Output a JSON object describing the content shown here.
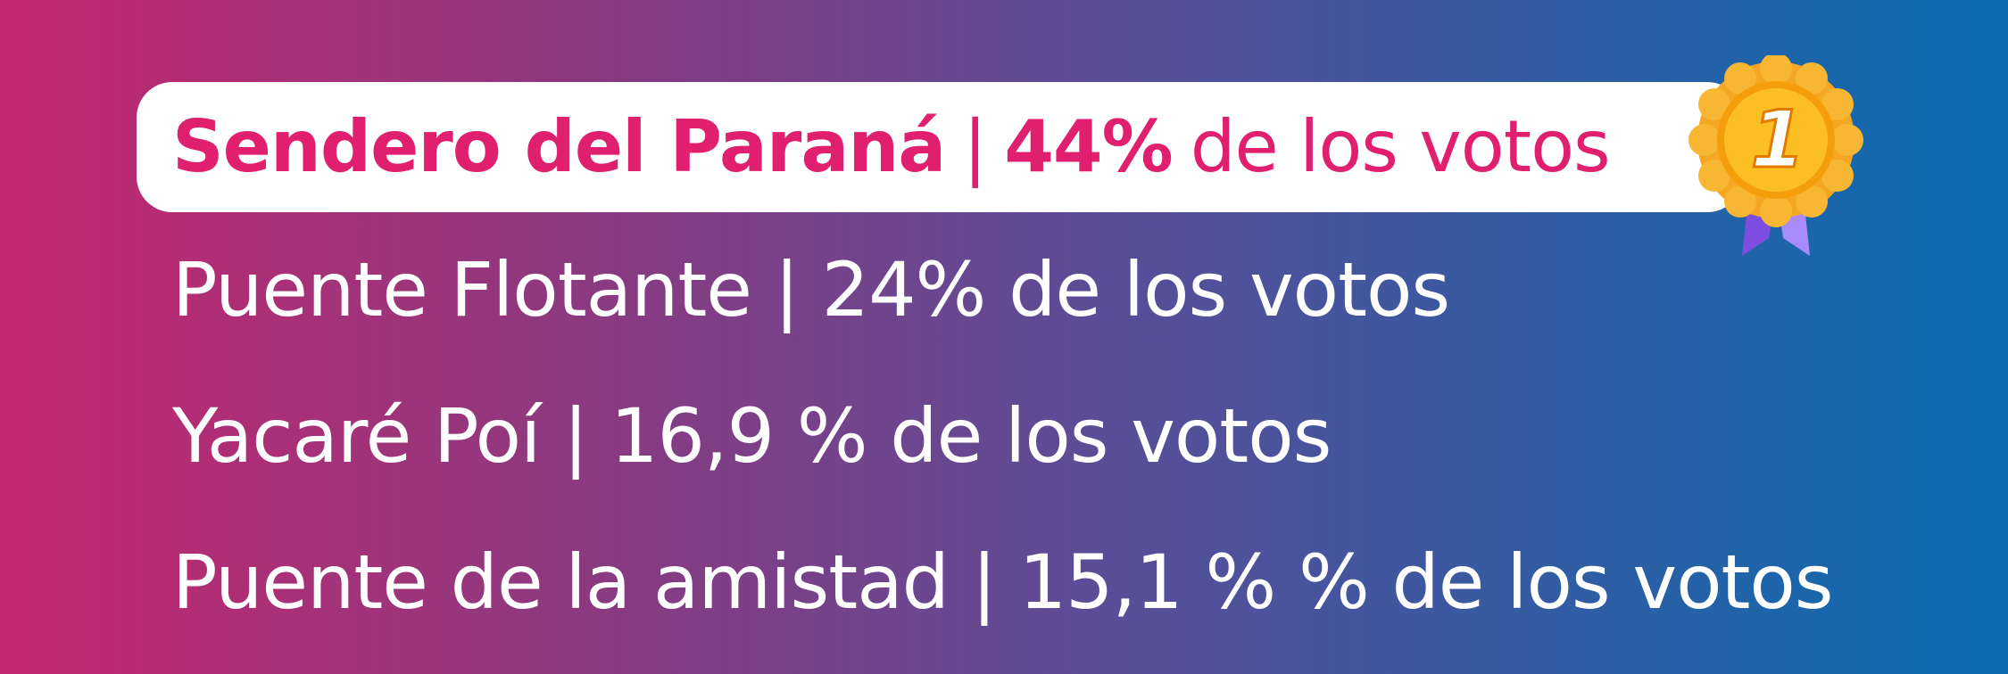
{
  "winner": {
    "name": "Sendero del Paraná",
    "separator": "|",
    "percent": "44%",
    "suffix": "de los votos",
    "medal_number": "1"
  },
  "results": [
    "Puente Flotante | 24% de los votos",
    "Yacaré Poí |  16,9 % de los votos",
    "Puente de la amistad | 15,1 % % de los votos"
  ],
  "colors": {
    "accent": "#e0206f",
    "gradient_start": "#c4276f",
    "gradient_end": "#0a6db2",
    "medal_gold": "#f7a51c",
    "ribbon": "#8b5cf6"
  }
}
